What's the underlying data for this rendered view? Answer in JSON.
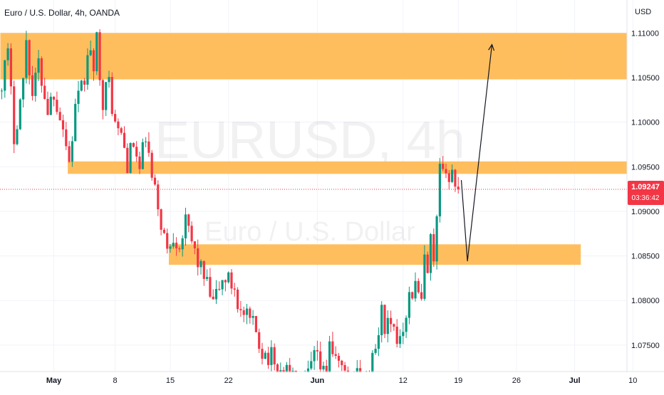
{
  "header": {
    "title": "Euro / U.S. Dollar, 4h, OANDA",
    "currency": "USD"
  },
  "watermark": {
    "symbol": "EURUSD, 4h",
    "name": "Euro / U.S. Dollar"
  },
  "current_price": {
    "label": "1.09247",
    "countdown": "03:36:42",
    "value": 1.09247,
    "color": "#f23645"
  },
  "colors": {
    "up": "#089981",
    "down": "#f23645",
    "zone": "#ffb74d",
    "grid": "#f0f3fa",
    "text": "#131722"
  },
  "chart_data": {
    "type": "candlestick",
    "title": "Euro / U.S. Dollar, 4h, OANDA",
    "yunit": "USD",
    "ylim": [
      1.0698,
      1.1137
    ],
    "yticks": [
      1.07,
      1.075,
      1.08,
      1.085,
      1.09,
      1.095,
      1.1,
      1.105,
      1.11
    ],
    "ytick_labels": [
      "1.07000",
      "1.07500",
      "1.08000",
      "1.08500",
      "1.09000",
      "1.09500",
      "1.10000",
      "1.10500",
      "1.11000"
    ],
    "xticks": [
      {
        "label": "May",
        "bar": 17,
        "bold": true
      },
      {
        "label": "8",
        "bar": 37
      },
      {
        "label": "15",
        "bar": 55
      },
      {
        "label": "22",
        "bar": 74
      },
      {
        "label": "Jun",
        "bar": 103,
        "bold": true
      },
      {
        "label": "12",
        "bar": 131
      },
      {
        "label": "19",
        "bar": 149
      },
      {
        "label": "26",
        "bar": 168
      },
      {
        "label": "Jul",
        "bar": 187,
        "bold": true
      },
      {
        "label": "10",
        "bar": 206
      }
    ],
    "grid": true,
    "price_path": [
      [
        0,
        1.1035
      ],
      [
        3,
        1.1075
      ],
      [
        5,
        1.0985
      ],
      [
        8,
        1.1045
      ],
      [
        9,
        1.1095
      ],
      [
        11,
        1.103
      ],
      [
        13,
        1.1065
      ],
      [
        16,
        1.1015
      ],
      [
        18,
        1.1035
      ],
      [
        21,
        1.0995
      ],
      [
        23,
        1.0955
      ],
      [
        25,
        1.1015
      ],
      [
        27,
        1.1035
      ],
      [
        30,
        1.1085
      ],
      [
        31,
        1.1045
      ],
      [
        32,
        1.1095
      ],
      [
        34,
        1.1025
      ],
      [
        36,
        1.1045
      ],
      [
        38,
        1.0995
      ],
      [
        40,
        1.0985
      ],
      [
        42,
        1.0955
      ],
      [
        44,
        1.0975
      ],
      [
        46,
        1.0945
      ],
      [
        48,
        1.0985
      ],
      [
        50,
        1.0935
      ],
      [
        52,
        1.0905
      ],
      [
        55,
        1.0855
      ],
      [
        57,
        1.0875
      ],
      [
        59,
        1.0865
      ],
      [
        61,
        1.0885
      ],
      [
        64,
        1.0855
      ],
      [
        66,
        1.0835
      ],
      [
        68,
        1.0815
      ],
      [
        70,
        1.0795
      ],
      [
        72,
        1.0815
      ],
      [
        74,
        1.0825
      ],
      [
        77,
        1.0815
      ],
      [
        79,
        1.0785
      ],
      [
        82,
        1.0775
      ],
      [
        84,
        1.0765
      ],
      [
        86,
        1.0745
      ],
      [
        89,
        1.0735
      ],
      [
        91,
        1.0715
      ],
      [
        93,
        1.0725
      ],
      [
        95,
        1.0715
      ],
      [
        97,
        1.0705
      ],
      [
        99,
        1.0695
      ],
      [
        101,
        1.0715
      ],
      [
        103,
        1.0735
      ],
      [
        105,
        1.0725
      ],
      [
        107,
        1.0705
      ],
      [
        108,
        1.0755
      ],
      [
        109,
        1.0745
      ],
      [
        110,
        1.0725
      ],
      [
        111,
        1.0735
      ],
      [
        113,
        1.0715
      ],
      [
        115,
        1.0705
      ],
      [
        117,
        1.0725
      ],
      [
        119,
        1.0705
      ],
      [
        121,
        1.0715
      ],
      [
        123,
        1.0745
      ],
      [
        125,
        1.0785
      ],
      [
        126,
        1.0775
      ],
      [
        128,
        1.0765
      ],
      [
        130,
        1.0755
      ],
      [
        132,
        1.0775
      ],
      [
        134,
        1.0805
      ],
      [
        136,
        1.0815
      ],
      [
        138,
        1.0795
      ],
      [
        139,
        1.0845
      ],
      [
        140,
        1.0825
      ],
      [
        141,
        1.0865
      ],
      [
        142,
        1.0835
      ],
      [
        143,
        1.0885
      ],
      [
        144,
        1.0945
      ],
      [
        145,
        1.0935
      ],
      [
        146,
        1.0955
      ],
      [
        147,
        1.0935
      ],
      [
        148,
        1.0945
      ],
      [
        149,
        1.0925
      ]
    ],
    "zones": [
      {
        "name": "upper-resistance-zone",
        "y_top": 1.11,
        "y_bottom": 1.1048,
        "x_start": 0,
        "x_end": 210
      },
      {
        "name": "middle-resistance-zone",
        "y_top": 1.0956,
        "y_bottom": 1.0942,
        "x_start": 22,
        "x_end": 210
      },
      {
        "name": "support-zone",
        "y_top": 1.0863,
        "y_bottom": 1.084,
        "x_start": 55,
        "x_end": 189
      }
    ],
    "projection_path": [
      [
        150,
        1.0935
      ],
      [
        152,
        1.0844
      ],
      [
        160,
        1.1087
      ]
    ]
  }
}
